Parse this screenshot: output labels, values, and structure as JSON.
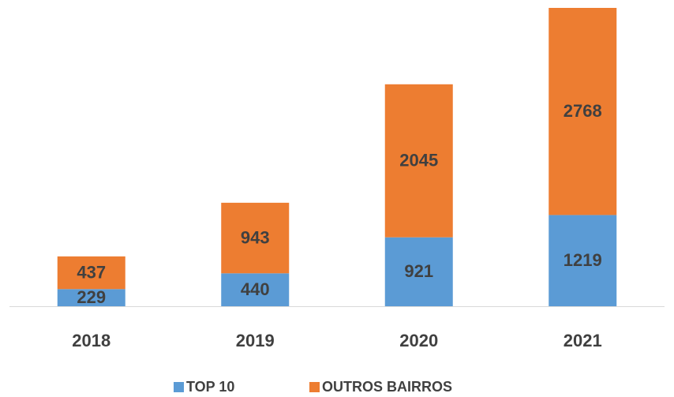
{
  "chart_data": {
    "type": "stacked_bar",
    "categories": [
      "2018",
      "2019",
      "2020",
      "2021"
    ],
    "series": [
      {
        "name": "TOP 10",
        "color": "#5b9bd5",
        "values": [
          229,
          440,
          921,
          1219
        ]
      },
      {
        "name": "OUTROS BAIRROS",
        "color": "#ed7d31",
        "values": [
          437,
          943,
          2045,
          2768
        ]
      }
    ],
    "legend": "bottom"
  }
}
